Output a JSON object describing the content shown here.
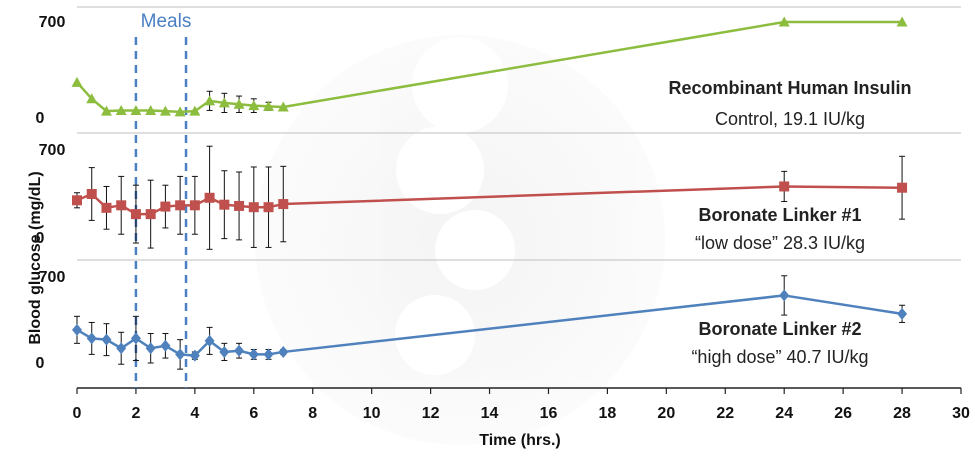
{
  "chart_data": {
    "type": "line",
    "xlabel": "Time (hrs.)",
    "ylabel": "Blood glucose (mg/dL)",
    "xlim": [
      0,
      30
    ],
    "x_ticks": [
      "0",
      "2",
      "4",
      "6",
      "8",
      "10",
      "12",
      "14",
      "16",
      "18",
      "20",
      "22",
      "24",
      "26",
      "28",
      "30"
    ],
    "ylim": [
      0,
      700
    ],
    "y_tick_labels": [
      "0",
      "700"
    ],
    "meals_label": "Meals",
    "meal_times": [
      2,
      3.7
    ],
    "panels": [
      {
        "name": "Recombinant Human Insulin",
        "subtitle": "Control, 19.1 IU/kg",
        "color": "#8cbd3f",
        "marker": "triangle",
        "x": [
          0,
          0.5,
          1,
          1.5,
          2,
          2.5,
          3,
          3.5,
          4,
          4.5,
          5,
          5.5,
          6,
          6.5,
          7,
          24,
          28
        ],
        "y": [
          260,
          140,
          50,
          55,
          55,
          55,
          50,
          45,
          50,
          125,
          110,
          100,
          90,
          85,
          80,
          700,
          700
        ],
        "err": [
          0,
          0,
          0,
          0,
          0,
          0,
          0,
          0,
          0,
          70,
          70,
          60,
          50,
          30,
          0,
          0,
          0
        ]
      },
      {
        "name": "Boronate Linker #1",
        "subtitle": "“low dose” 28.3 IU/kg",
        "color": "#c0504d",
        "marker": "square",
        "x": [
          0,
          0.5,
          1,
          1.5,
          2,
          2.5,
          3,
          3.5,
          4,
          4.5,
          5,
          5.5,
          6,
          6.5,
          7,
          24,
          28
        ],
        "y": [
          300,
          350,
          240,
          260,
          190,
          190,
          250,
          260,
          260,
          320,
          265,
          255,
          245,
          245,
          270,
          410,
          400
        ],
        "err": [
          60,
          210,
          170,
          230,
          230,
          270,
          170,
          230,
          230,
          410,
          270,
          270,
          320,
          320,
          300,
          120,
          250
        ]
      },
      {
        "name": "Boronate Linker #2",
        "subtitle": "“high dose” 40.7 IU/kg",
        "color": "#4f81bd",
        "marker": "diamond",
        "x": [
          0,
          0.5,
          1,
          1.5,
          2,
          2.5,
          3,
          3.5,
          4,
          4.5,
          5,
          5.5,
          6,
          6.5,
          7,
          24,
          28
        ],
        "y": [
          270,
          200,
          190,
          120,
          200,
          120,
          140,
          70,
          60,
          180,
          90,
          100,
          70,
          70,
          90,
          550,
          400
        ],
        "err": [
          110,
          130,
          130,
          130,
          180,
          120,
          100,
          120,
          30,
          110,
          70,
          60,
          40,
          40,
          20,
          160,
          70
        ]
      }
    ],
    "grid": false,
    "legend": "none"
  }
}
